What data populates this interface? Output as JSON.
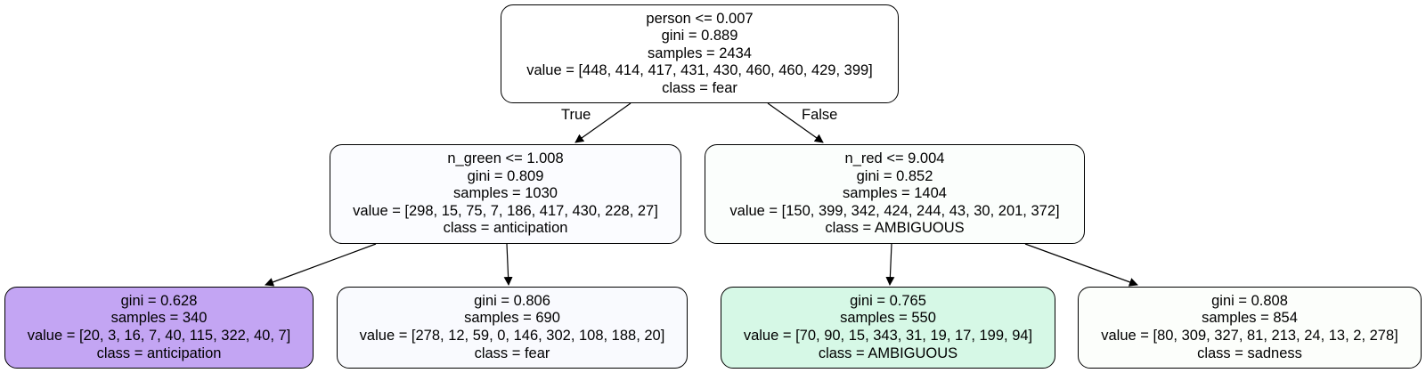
{
  "tree": {
    "nodes": {
      "root": {
        "condition": "person <= 0.007",
        "gini": "gini = 0.889",
        "samples": "samples = 2434",
        "value": "value = [448, 414, 417, 431, 430, 460, 460, 429, 399]",
        "class": "class = fear",
        "fill": "#ffffff"
      },
      "left": {
        "condition": "n_green <= 1.008",
        "gini": "gini = 0.809",
        "samples": "samples = 1030",
        "value": "value = [298, 15, 75, 7, 186, 417, 430, 228, 27]",
        "class": "class = anticipation",
        "fill": "#fbfcff"
      },
      "right": {
        "condition": "n_red <= 9.004",
        "gini": "gini = 0.852",
        "samples": "samples = 1404",
        "value": "value = [150, 399, 342, 424, 244, 43, 30, 201, 372]",
        "class": "class = AMBIGUOUS",
        "fill": "#fbfefc"
      },
      "leaf_ll": {
        "gini": "gini = 0.628",
        "samples": "samples = 340",
        "value": "value = [20, 3, 16, 7, 40, 115, 322, 40, 7]",
        "class": "class = anticipation",
        "fill": "#c3a5f3"
      },
      "leaf_lr": {
        "gini": "gini = 0.806",
        "samples": "samples = 690",
        "value": "value = [278, 12, 59, 0, 146, 302, 108, 188, 20]",
        "class": "class = fear",
        "fill": "#f9fafe"
      },
      "leaf_rl": {
        "gini": "gini = 0.765",
        "samples": "samples = 550",
        "value": "value = [70, 90, 15, 343, 31, 19, 17, 199, 94]",
        "class": "class = AMBIGUOUS",
        "fill": "#d6f8e6"
      },
      "leaf_rr": {
        "gini": "gini = 0.808",
        "samples": "samples = 854",
        "value": "value = [80, 309, 327, 81, 213, 24, 13, 2, 278]",
        "class": "class = sadness",
        "fill": "#fcfefb"
      }
    },
    "edge_labels": {
      "true_label": "True",
      "false_label": "False"
    }
  }
}
